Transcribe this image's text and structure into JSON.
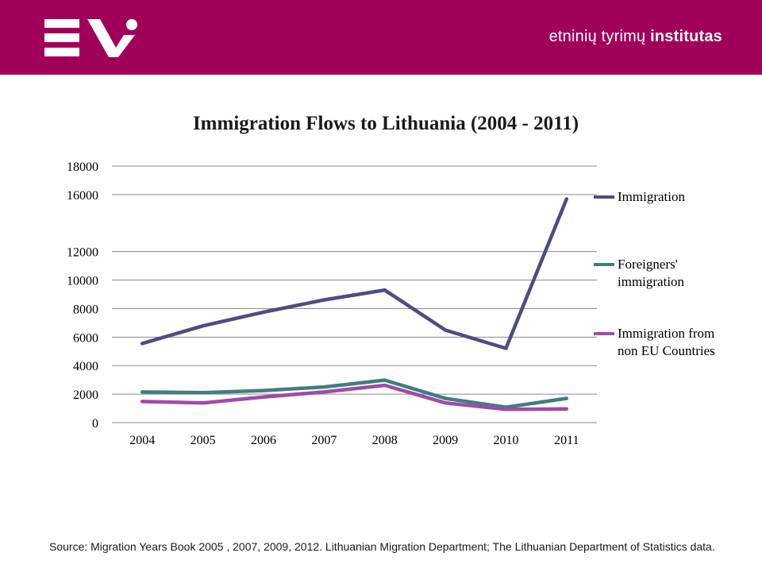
{
  "header": {
    "brand_light": "etninių tyrimų",
    "brand_bold": "institutas",
    "accent_color": "#a0005a"
  },
  "chart_data": {
    "type": "line",
    "title": "Immigration Flows to Lithuania (2004 - 2011)",
    "xlabel": "",
    "ylabel": "",
    "categories": [
      "2004",
      "2005",
      "2006",
      "2007",
      "2008",
      "2009",
      "2010",
      "2011"
    ],
    "ylim": [
      0,
      18000
    ],
    "yticks": [
      "0",
      "2000",
      "4000",
      "6000",
      "8000",
      "10000",
      "12000",
      "16000",
      "18000"
    ],
    "ytick_values": [
      0,
      2000,
      4000,
      6000,
      8000,
      10000,
      12000,
      16000,
      18000
    ],
    "grid": true,
    "legend_position": "right",
    "series": [
      {
        "name": "Immigration",
        "color": "#4e4c82",
        "values": [
          5550,
          6790,
          7750,
          8610,
          9300,
          6490,
          5210,
          15690
        ]
      },
      {
        "name": "Foreigners' immigration",
        "color": "#3f7e82",
        "values": [
          2150,
          2100,
          2250,
          2500,
          2980,
          1700,
          1080,
          1700
        ]
      },
      {
        "name": "Immigration from non EU Countries",
        "color": "#a04aa8",
        "values": [
          1480,
          1380,
          1800,
          2150,
          2620,
          1380,
          930,
          960
        ]
      }
    ]
  },
  "legend": [
    "Immigration",
    "Foreigners' immigration",
    "Immigration from non EU Countries"
  ],
  "source": "Source: Migration Years Book 2005 , 2007, 2009, 2012. Lithuanian Migration Department; The Lithuanian Department of Statistics data."
}
